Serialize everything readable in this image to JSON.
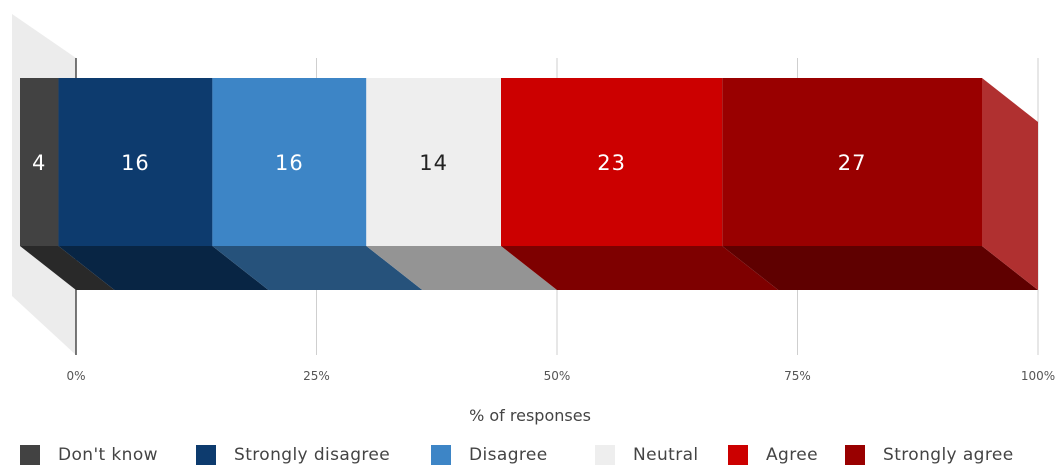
{
  "chart_data": {
    "type": "bar",
    "orientation": "horizontal",
    "stacked": true,
    "style": "3d",
    "xlabel": "% of responses",
    "xlim": [
      0,
      100
    ],
    "x_ticks": [
      "0%",
      "25%",
      "50%",
      "75%",
      "100%"
    ],
    "grid": true,
    "legend_position": "bottom",
    "series": [
      {
        "name": "Don't know",
        "values": [
          4
        ],
        "label": "4",
        "color": "#424242",
        "label_color": "#ffffff"
      },
      {
        "name": "Strongly disagree",
        "values": [
          16
        ],
        "label": "16",
        "color": "#0d3b6e",
        "label_color": "#ffffff"
      },
      {
        "name": "Disagree",
        "values": [
          16
        ],
        "label": "16",
        "color": "#3d85c6",
        "label_color": "#ffffff"
      },
      {
        "name": "Neutral",
        "values": [
          14
        ],
        "label": "14",
        "color": "#eeeeee",
        "label_color": "#222222"
      },
      {
        "name": "Agree",
        "values": [
          23
        ],
        "label": "23",
        "color": "#cc0000",
        "label_color": "#ffffff"
      },
      {
        "name": "Strongly agree",
        "values": [
          27
        ],
        "label": "27",
        "color": "#990000",
        "label_color": "#ffffff"
      }
    ]
  }
}
